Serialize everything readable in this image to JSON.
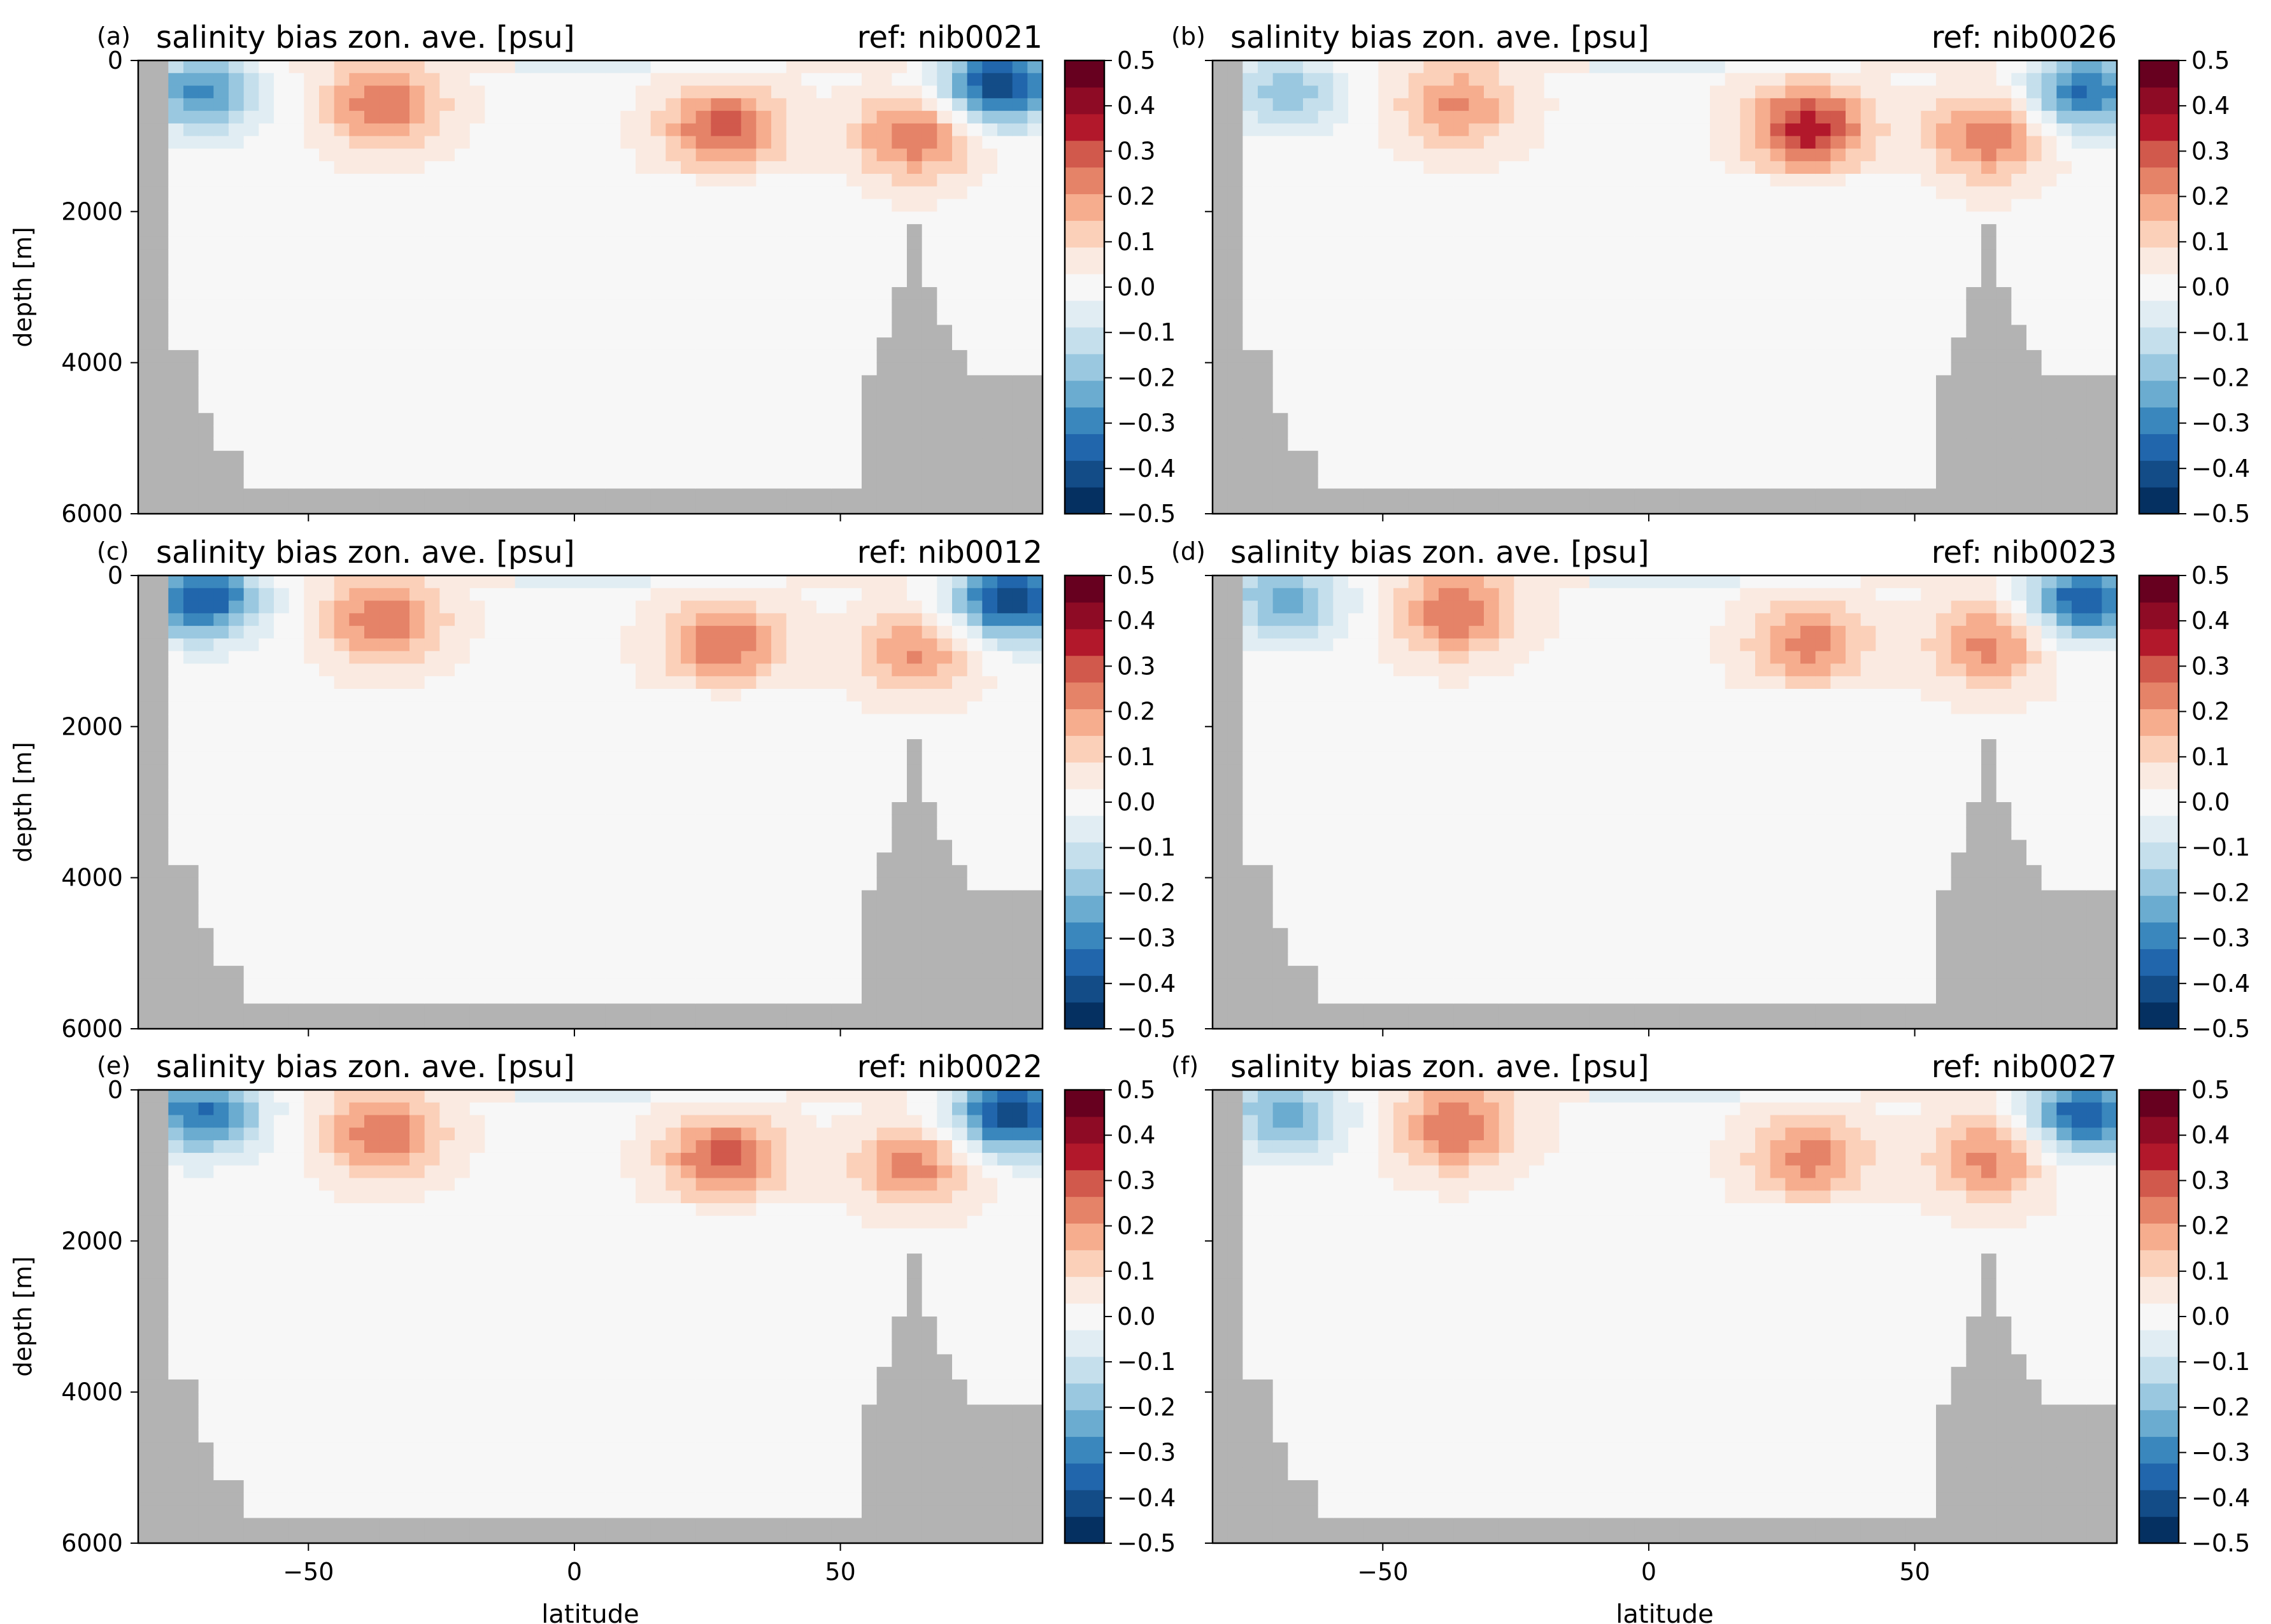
{
  "figure": {
    "x_label": "latitude",
    "y_label": "depth [m]",
    "panel_title": "salinity bias zon. ave. [psu]"
  },
  "colors": {
    "land": "#b3b3b3",
    "colormap": [
      "#053061",
      "#134c87",
      "#2166ac",
      "#3a87bd",
      "#6bacd0",
      "#9ac8e0",
      "#c5dfec",
      "#e1edf3",
      "#f7f7f7",
      "#faeae1",
      "#fbd0b9",
      "#f6ad8e",
      "#e58368",
      "#d1594c",
      "#b2182b",
      "#8e0b25",
      "#67001f"
    ]
  },
  "chart_data": [
    {
      "type": "heatmap",
      "panel": "(a)",
      "title": "salinity bias zon. ave. [psu]",
      "reference": "ref: nib0021",
      "xlabel": "",
      "ylabel": "depth [m]",
      "xlim": [
        -82,
        88
      ],
      "ylim": [
        6000,
        0
      ],
      "xticks": [
        -50,
        0,
        50
      ],
      "yticks": [
        0,
        2000,
        4000,
        6000
      ],
      "colorbar": {
        "vmin": -0.5,
        "vmax": 0.5,
        "levels": 16,
        "ticks": [
          "0.5",
          "0.4",
          "0.3",
          "0.2",
          "0.1",
          "0.0",
          "−0.1",
          "−0.2",
          "−0.3",
          "−0.4",
          "−0.5"
        ]
      },
      "features": [
        {
          "lat": -70,
          "depth": 400,
          "value": -0.3
        },
        {
          "lat": -36,
          "depth": 600,
          "value": 0.25
        },
        {
          "lat": 28,
          "depth": 900,
          "value": 0.28
        },
        {
          "lat": 64,
          "depth": 1000,
          "value": 0.25
        },
        {
          "lat": 80,
          "depth": 300,
          "value": -0.45
        }
      ]
    },
    {
      "type": "heatmap",
      "panel": "(b)",
      "title": "salinity bias zon. ave. [psu]",
      "reference": "ref: nib0026",
      "xlabel": "",
      "ylabel": "",
      "xlim": [
        -82,
        88
      ],
      "ylim": [
        6000,
        0
      ],
      "xticks": [
        -50,
        0,
        50
      ],
      "yticks": [
        0,
        2000,
        4000,
        6000
      ],
      "colorbar": {
        "vmin": -0.5,
        "vmax": 0.5,
        "levels": 16,
        "ticks": [
          "0.5",
          "0.4",
          "0.3",
          "0.2",
          "0.1",
          "0.0",
          "−0.1",
          "−0.2",
          "−0.3",
          "−0.4",
          "−0.5"
        ]
      },
      "features": [
        {
          "lat": -68,
          "depth": 400,
          "value": -0.2
        },
        {
          "lat": -36,
          "depth": 600,
          "value": 0.2
        },
        {
          "lat": 30,
          "depth": 900,
          "value": 0.35
        },
        {
          "lat": 64,
          "depth": 1000,
          "value": 0.25
        },
        {
          "lat": 82,
          "depth": 400,
          "value": -0.35
        }
      ]
    },
    {
      "type": "heatmap",
      "panel": "(c)",
      "title": "salinity bias zon. ave. [psu]",
      "reference": "ref: nib0012",
      "xlabel": "",
      "ylabel": "depth [m]",
      "xlim": [
        -82,
        88
      ],
      "ylim": [
        6000,
        0
      ],
      "xticks": [
        -50,
        0,
        50
      ],
      "yticks": [
        0,
        2000,
        4000,
        6000
      ],
      "colorbar": {
        "vmin": -0.5,
        "vmax": 0.5,
        "levels": 16,
        "ticks": [
          "0.5",
          "0.4",
          "0.3",
          "0.2",
          "0.1",
          "0.0",
          "−0.1",
          "−0.2",
          "−0.3",
          "−0.4",
          "−0.5"
        ]
      },
      "features": [
        {
          "lat": -70,
          "depth": 300,
          "value": -0.4
        },
        {
          "lat": -36,
          "depth": 600,
          "value": 0.25
        },
        {
          "lat": 28,
          "depth": 900,
          "value": 0.25
        },
        {
          "lat": 64,
          "depth": 1000,
          "value": 0.2
        },
        {
          "lat": 82,
          "depth": 300,
          "value": -0.45
        }
      ]
    },
    {
      "type": "heatmap",
      "panel": "(d)",
      "title": "salinity bias zon. ave. [psu]",
      "reference": "ref: nib0023",
      "xlabel": "",
      "ylabel": "",
      "xlim": [
        -82,
        88
      ],
      "ylim": [
        6000,
        0
      ],
      "xticks": [
        -50,
        0,
        50
      ],
      "yticks": [
        0,
        2000,
        4000,
        6000
      ],
      "colorbar": {
        "vmin": -0.5,
        "vmax": 0.5,
        "levels": 16,
        "ticks": [
          "0.5",
          "0.4",
          "0.3",
          "0.2",
          "0.1",
          "0.0",
          "−0.1",
          "−0.2",
          "−0.3",
          "−0.4",
          "−0.5"
        ]
      },
      "features": [
        {
          "lat": -68,
          "depth": 300,
          "value": -0.25
        },
        {
          "lat": -36,
          "depth": 500,
          "value": 0.25
        },
        {
          "lat": 30,
          "depth": 900,
          "value": 0.22
        },
        {
          "lat": 64,
          "depth": 900,
          "value": 0.22
        },
        {
          "lat": 82,
          "depth": 300,
          "value": -0.4
        }
      ]
    },
    {
      "type": "heatmap",
      "panel": "(e)",
      "title": "salinity bias zon. ave. [psu]",
      "reference": "ref: nib0022",
      "xlabel": "latitude",
      "ylabel": "depth [m]",
      "xlim": [
        -82,
        88
      ],
      "ylim": [
        6000,
        0
      ],
      "xticks": [
        -50,
        0,
        50
      ],
      "yticks": [
        0,
        2000,
        4000,
        6000
      ],
      "colorbar": {
        "vmin": -0.5,
        "vmax": 0.5,
        "levels": 16,
        "ticks": [
          "0.5",
          "0.4",
          "0.3",
          "0.2",
          "0.1",
          "0.0",
          "−0.1",
          "−0.2",
          "−0.3",
          "−0.4",
          "−0.5"
        ]
      },
      "features": [
        {
          "lat": -70,
          "depth": 300,
          "value": -0.35
        },
        {
          "lat": -36,
          "depth": 600,
          "value": 0.25
        },
        {
          "lat": 28,
          "depth": 900,
          "value": 0.28
        },
        {
          "lat": 64,
          "depth": 1000,
          "value": 0.22
        },
        {
          "lat": 82,
          "depth": 300,
          "value": -0.45
        }
      ]
    },
    {
      "type": "heatmap",
      "panel": "(f)",
      "title": "salinity bias zon. ave. [psu]",
      "reference": "ref: nib0027",
      "xlabel": "latitude",
      "ylabel": "",
      "xlim": [
        -82,
        88
      ],
      "ylim": [
        6000,
        0
      ],
      "xticks": [
        -50,
        0,
        50
      ],
      "yticks": [
        0,
        2000,
        4000,
        6000
      ],
      "colorbar": {
        "vmin": -0.5,
        "vmax": 0.5,
        "levels": 16,
        "ticks": [
          "0.5",
          "0.4",
          "0.3",
          "0.2",
          "0.1",
          "0.0",
          "−0.1",
          "−0.2",
          "−0.3",
          "−0.4",
          "−0.5"
        ]
      },
      "features": [
        {
          "lat": -68,
          "depth": 300,
          "value": -0.25
        },
        {
          "lat": -36,
          "depth": 500,
          "value": 0.25
        },
        {
          "lat": 30,
          "depth": 900,
          "value": 0.22
        },
        {
          "lat": 64,
          "depth": 900,
          "value": 0.22
        },
        {
          "lat": 82,
          "depth": 300,
          "value": -0.4
        }
      ]
    }
  ]
}
